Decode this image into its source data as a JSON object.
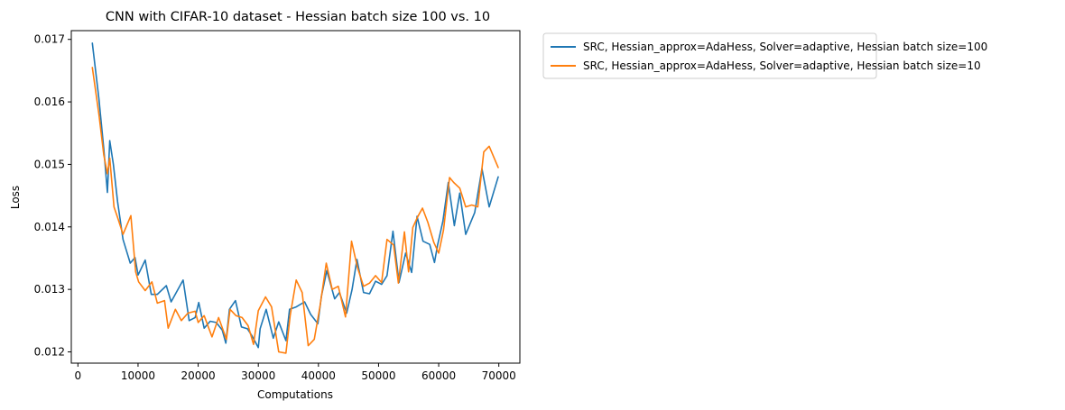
{
  "chart_data": {
    "type": "line",
    "title": "CNN with CIFAR-10 dataset - Hessian batch size 100 vs. 10",
    "xlabel": "Computations",
    "ylabel": "Loss",
    "xlim": [
      -1100,
      73500
    ],
    "ylim": [
      0.01182,
      0.01714
    ],
    "xticks": [
      0,
      10000,
      20000,
      30000,
      40000,
      50000,
      60000,
      70000
    ],
    "xtick_labels": [
      "0",
      "10000",
      "20000",
      "30000",
      "40000",
      "50000",
      "60000",
      "70000"
    ],
    "yticks": [
      0.012,
      0.013,
      0.014,
      0.015,
      0.016,
      0.017
    ],
    "ytick_labels": [
      "0.012",
      "0.013",
      "0.014",
      "0.015",
      "0.016",
      "0.017"
    ],
    "grid": false,
    "legend_position": "outside-upper-right",
    "series": [
      {
        "name": "SRC, Hessian_approx=AdaHess, Solver=adaptive, Hessian batch size=100",
        "color": "#1f77b4",
        "x": [
          2400,
          3500,
          4300,
          4900,
          5300,
          5900,
          6600,
          7500,
          8700,
          9500,
          10000,
          11200,
          12200,
          13200,
          14700,
          15500,
          17500,
          18500,
          19500,
          20100,
          21000,
          22000,
          23000,
          24000,
          24600,
          25200,
          26200,
          27200,
          28200,
          29000,
          30000,
          30300,
          31300,
          32500,
          33400,
          34600,
          35200,
          36300,
          37700,
          38700,
          39900,
          40500,
          41400,
          42700,
          43500,
          44700,
          45600,
          46400,
          47500,
          48500,
          49500,
          50500,
          51400,
          52400,
          53400,
          54500,
          55500,
          56400,
          57400,
          58500,
          59300,
          59800,
          60700,
          61600,
          62600,
          63500,
          64500,
          65000,
          66000,
          67200,
          68400,
          69900
        ],
        "y": [
          0.01694,
          0.01605,
          0.01525,
          0.01455,
          0.01538,
          0.015,
          0.0144,
          0.0138,
          0.01342,
          0.01351,
          0.01323,
          0.01347,
          0.01292,
          0.01292,
          0.01306,
          0.0128,
          0.01315,
          0.0125,
          0.01255,
          0.01279,
          0.01238,
          0.01249,
          0.01247,
          0.01235,
          0.01214,
          0.01268,
          0.01282,
          0.0124,
          0.01237,
          0.01225,
          0.01207,
          0.01237,
          0.01268,
          0.01222,
          0.01248,
          0.01218,
          0.01268,
          0.01272,
          0.0128,
          0.0126,
          0.01245,
          0.01289,
          0.0133,
          0.01285,
          0.01295,
          0.01262,
          0.013,
          0.01348,
          0.01295,
          0.01293,
          0.01313,
          0.01308,
          0.01322,
          0.01393,
          0.01311,
          0.01358,
          0.01327,
          0.01417,
          0.01377,
          0.01372,
          0.01343,
          0.0137,
          0.01409,
          0.01471,
          0.01402,
          0.01454,
          0.01388,
          0.014,
          0.01423,
          0.01493,
          0.01432,
          0.0148
        ]
      },
      {
        "name": "SRC, Hessian_approx=AdaHess, Solver=adaptive, Hessian batch size=10",
        "color": "#ff7f0e",
        "x": [
          2400,
          3500,
          4300,
          4900,
          5300,
          6000,
          6700,
          7500,
          8800,
          9600,
          10100,
          11200,
          12300,
          13200,
          14400,
          15000,
          16200,
          17200,
          18300,
          19500,
          20000,
          21000,
          22300,
          23400,
          24700,
          25300,
          26300,
          27300,
          28300,
          29200,
          30000,
          31200,
          32200,
          33400,
          34600,
          35300,
          36300,
          37300,
          38300,
          39300,
          40300,
          41300,
          42300,
          43300,
          44500,
          45500,
          46500,
          47500,
          48500,
          49500,
          50500,
          51400,
          52500,
          53300,
          54300,
          55000,
          55700,
          56500,
          57300,
          58200,
          59200,
          60000,
          60800,
          61800,
          62500,
          63500,
          64500,
          65500,
          66500,
          67500,
          68400,
          69900
        ],
        "y": [
          0.01655,
          0.0158,
          0.01515,
          0.01485,
          0.0151,
          0.01432,
          0.01412,
          0.01388,
          0.01418,
          0.01328,
          0.01312,
          0.01298,
          0.01312,
          0.01278,
          0.01282,
          0.01238,
          0.01268,
          0.0125,
          0.01262,
          0.01265,
          0.01247,
          0.01258,
          0.01224,
          0.01255,
          0.0122,
          0.01268,
          0.01258,
          0.01255,
          0.01242,
          0.01212,
          0.01266,
          0.01288,
          0.01272,
          0.012,
          0.01198,
          0.01258,
          0.01315,
          0.01295,
          0.0121,
          0.0122,
          0.01275,
          0.01342,
          0.013,
          0.01305,
          0.01256,
          0.01377,
          0.01335,
          0.01305,
          0.0131,
          0.01322,
          0.01311,
          0.0138,
          0.01371,
          0.0131,
          0.01392,
          0.01328,
          0.01399,
          0.01416,
          0.0143,
          0.01407,
          0.01375,
          0.01358,
          0.01395,
          0.01479,
          0.01471,
          0.01462,
          0.01432,
          0.01435,
          0.01432,
          0.0152,
          0.01529,
          0.01495
        ]
      }
    ]
  }
}
